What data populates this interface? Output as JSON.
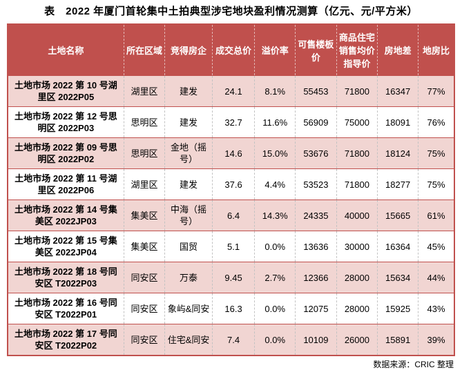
{
  "title": "表　2022 年厦门首轮集中土拍典型涉宅地块盈利情况测算（亿元、元/平方米）",
  "source_note": "数据来源：CRIC 整理",
  "colors": {
    "header_bg": "#c0504d",
    "header_text": "#ffffff",
    "highlight_row_bg": "#f1d5d2",
    "row_rule": "#c0504d",
    "column_dash": "#c2c2c2"
  },
  "chart_data": {
    "type": "table",
    "title": "2022 年厦门首轮集中土拍典型涉宅地块盈利情况测算（亿元、元/平方米）",
    "columns": [
      "土地名称",
      "所在区域",
      "竞得房企",
      "成交总价",
      "溢价率",
      "可售楼板价",
      "商品住宅销售均价指导价",
      "房地差",
      "地房比"
    ],
    "rows": [
      [
        "土地市场 2022 第 10 号湖里区 2022P05",
        "湖里区",
        "建发",
        "24.1",
        "8.1%",
        "55453",
        "71800",
        "16347",
        "77%"
      ],
      [
        "土地市场 2022 第 12 号思明区 2022P03",
        "思明区",
        "建发",
        "32.7",
        "11.6%",
        "56909",
        "75000",
        "18091",
        "76%"
      ],
      [
        "土地市场 2022 第 09 号思明区 2022P02",
        "思明区",
        "金地（摇号）",
        "14.6",
        "15.0%",
        "53676",
        "71800",
        "18124",
        "75%"
      ],
      [
        "土地市场 2022 第 11 号湖里区 2022P06",
        "湖里区",
        "建发",
        "37.6",
        "4.4%",
        "53523",
        "71800",
        "18277",
        "75%"
      ],
      [
        "土地市场 2022 第 14 号集美区 2022JP03",
        "集美区",
        "中海（摇号）",
        "6.4",
        "14.3%",
        "24335",
        "40000",
        "15665",
        "61%"
      ],
      [
        "土地市场 2022 第 15 号集美区 2022JP04",
        "集美区",
        "国贸",
        "5.1",
        "0.0%",
        "13636",
        "30000",
        "16364",
        "45%"
      ],
      [
        "土地市场 2022 第 18 号同安区 T2022P03",
        "同安区",
        "万泰",
        "9.45",
        "2.7%",
        "12366",
        "28000",
        "15634",
        "44%"
      ],
      [
        "土地市场 2022 第 16 号同安区 T2022P01",
        "同安区",
        "象屿&同安",
        "16.3",
        "0.0%",
        "12075",
        "28000",
        "15925",
        "43%"
      ],
      [
        "土地市场 2022 第 17 号同安区 T2022P02",
        "同安区",
        "住宅&同安",
        "7.4",
        "0.0%",
        "10109",
        "26000",
        "15891",
        "39%"
      ]
    ],
    "highlighted_row_indices": [
      0,
      2,
      4,
      6,
      8
    ]
  }
}
